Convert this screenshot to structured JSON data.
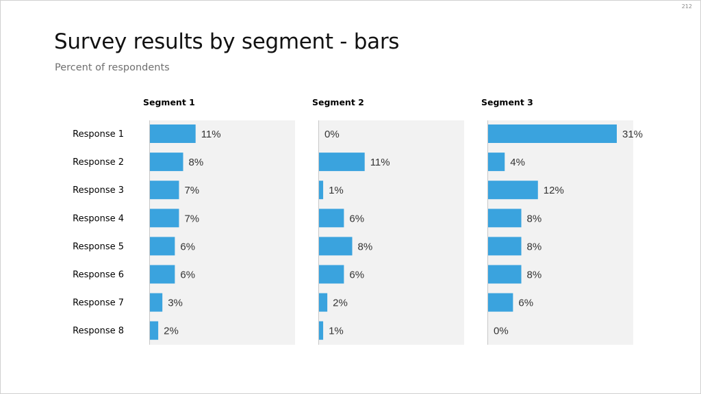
{
  "page_number": "212",
  "title": "Survey results by segment - bars",
  "subtitle": "Percent of respondents",
  "colors": {
    "bar": "#3aa3de",
    "panel": "#f2f2f2",
    "axis": "#c8c8c8"
  },
  "chart_data": {
    "type": "bar",
    "orientation": "horizontal",
    "value_format": "percent",
    "categories": [
      "Response 1",
      "Response 2",
      "Response 3",
      "Response 4",
      "Response 5",
      "Response 6",
      "Response 7",
      "Response 8"
    ],
    "series": [
      {
        "name": "Segment 1",
        "values": [
          11,
          8,
          7,
          7,
          6,
          6,
          3,
          2
        ]
      },
      {
        "name": "Segment 2",
        "values": [
          0,
          11,
          1,
          6,
          8,
          6,
          2,
          1
        ]
      },
      {
        "name": "Segment 3",
        "values": [
          31,
          4,
          12,
          8,
          8,
          8,
          6,
          0
        ]
      }
    ],
    "xlim": [
      0,
      35
    ],
    "grid": false,
    "legend": "none"
  }
}
